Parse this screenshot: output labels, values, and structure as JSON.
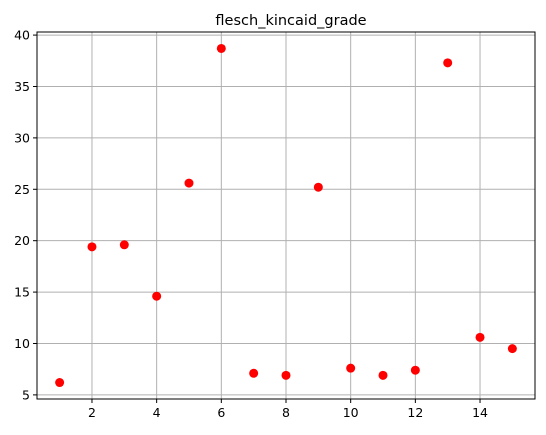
{
  "chart_data": {
    "type": "scatter",
    "title": "flesch_kincaid_grade",
    "xlabel": "",
    "ylabel": "",
    "x": [
      1,
      2,
      3,
      4,
      5,
      6,
      7,
      8,
      9,
      10,
      11,
      12,
      13,
      14,
      15
    ],
    "y": [
      6.2,
      19.4,
      19.6,
      14.6,
      25.6,
      38.7,
      7.1,
      6.9,
      25.2,
      7.6,
      6.9,
      7.4,
      37.3,
      10.6,
      9.5
    ],
    "xlim": [
      0.3,
      15.7
    ],
    "ylim": [
      4.6,
      40.3
    ],
    "xticks": [
      2,
      4,
      6,
      8,
      10,
      12,
      14
    ],
    "yticks": [
      5,
      10,
      15,
      20,
      25,
      30,
      35,
      40
    ],
    "grid": true,
    "marker_color": "#ff0000"
  }
}
